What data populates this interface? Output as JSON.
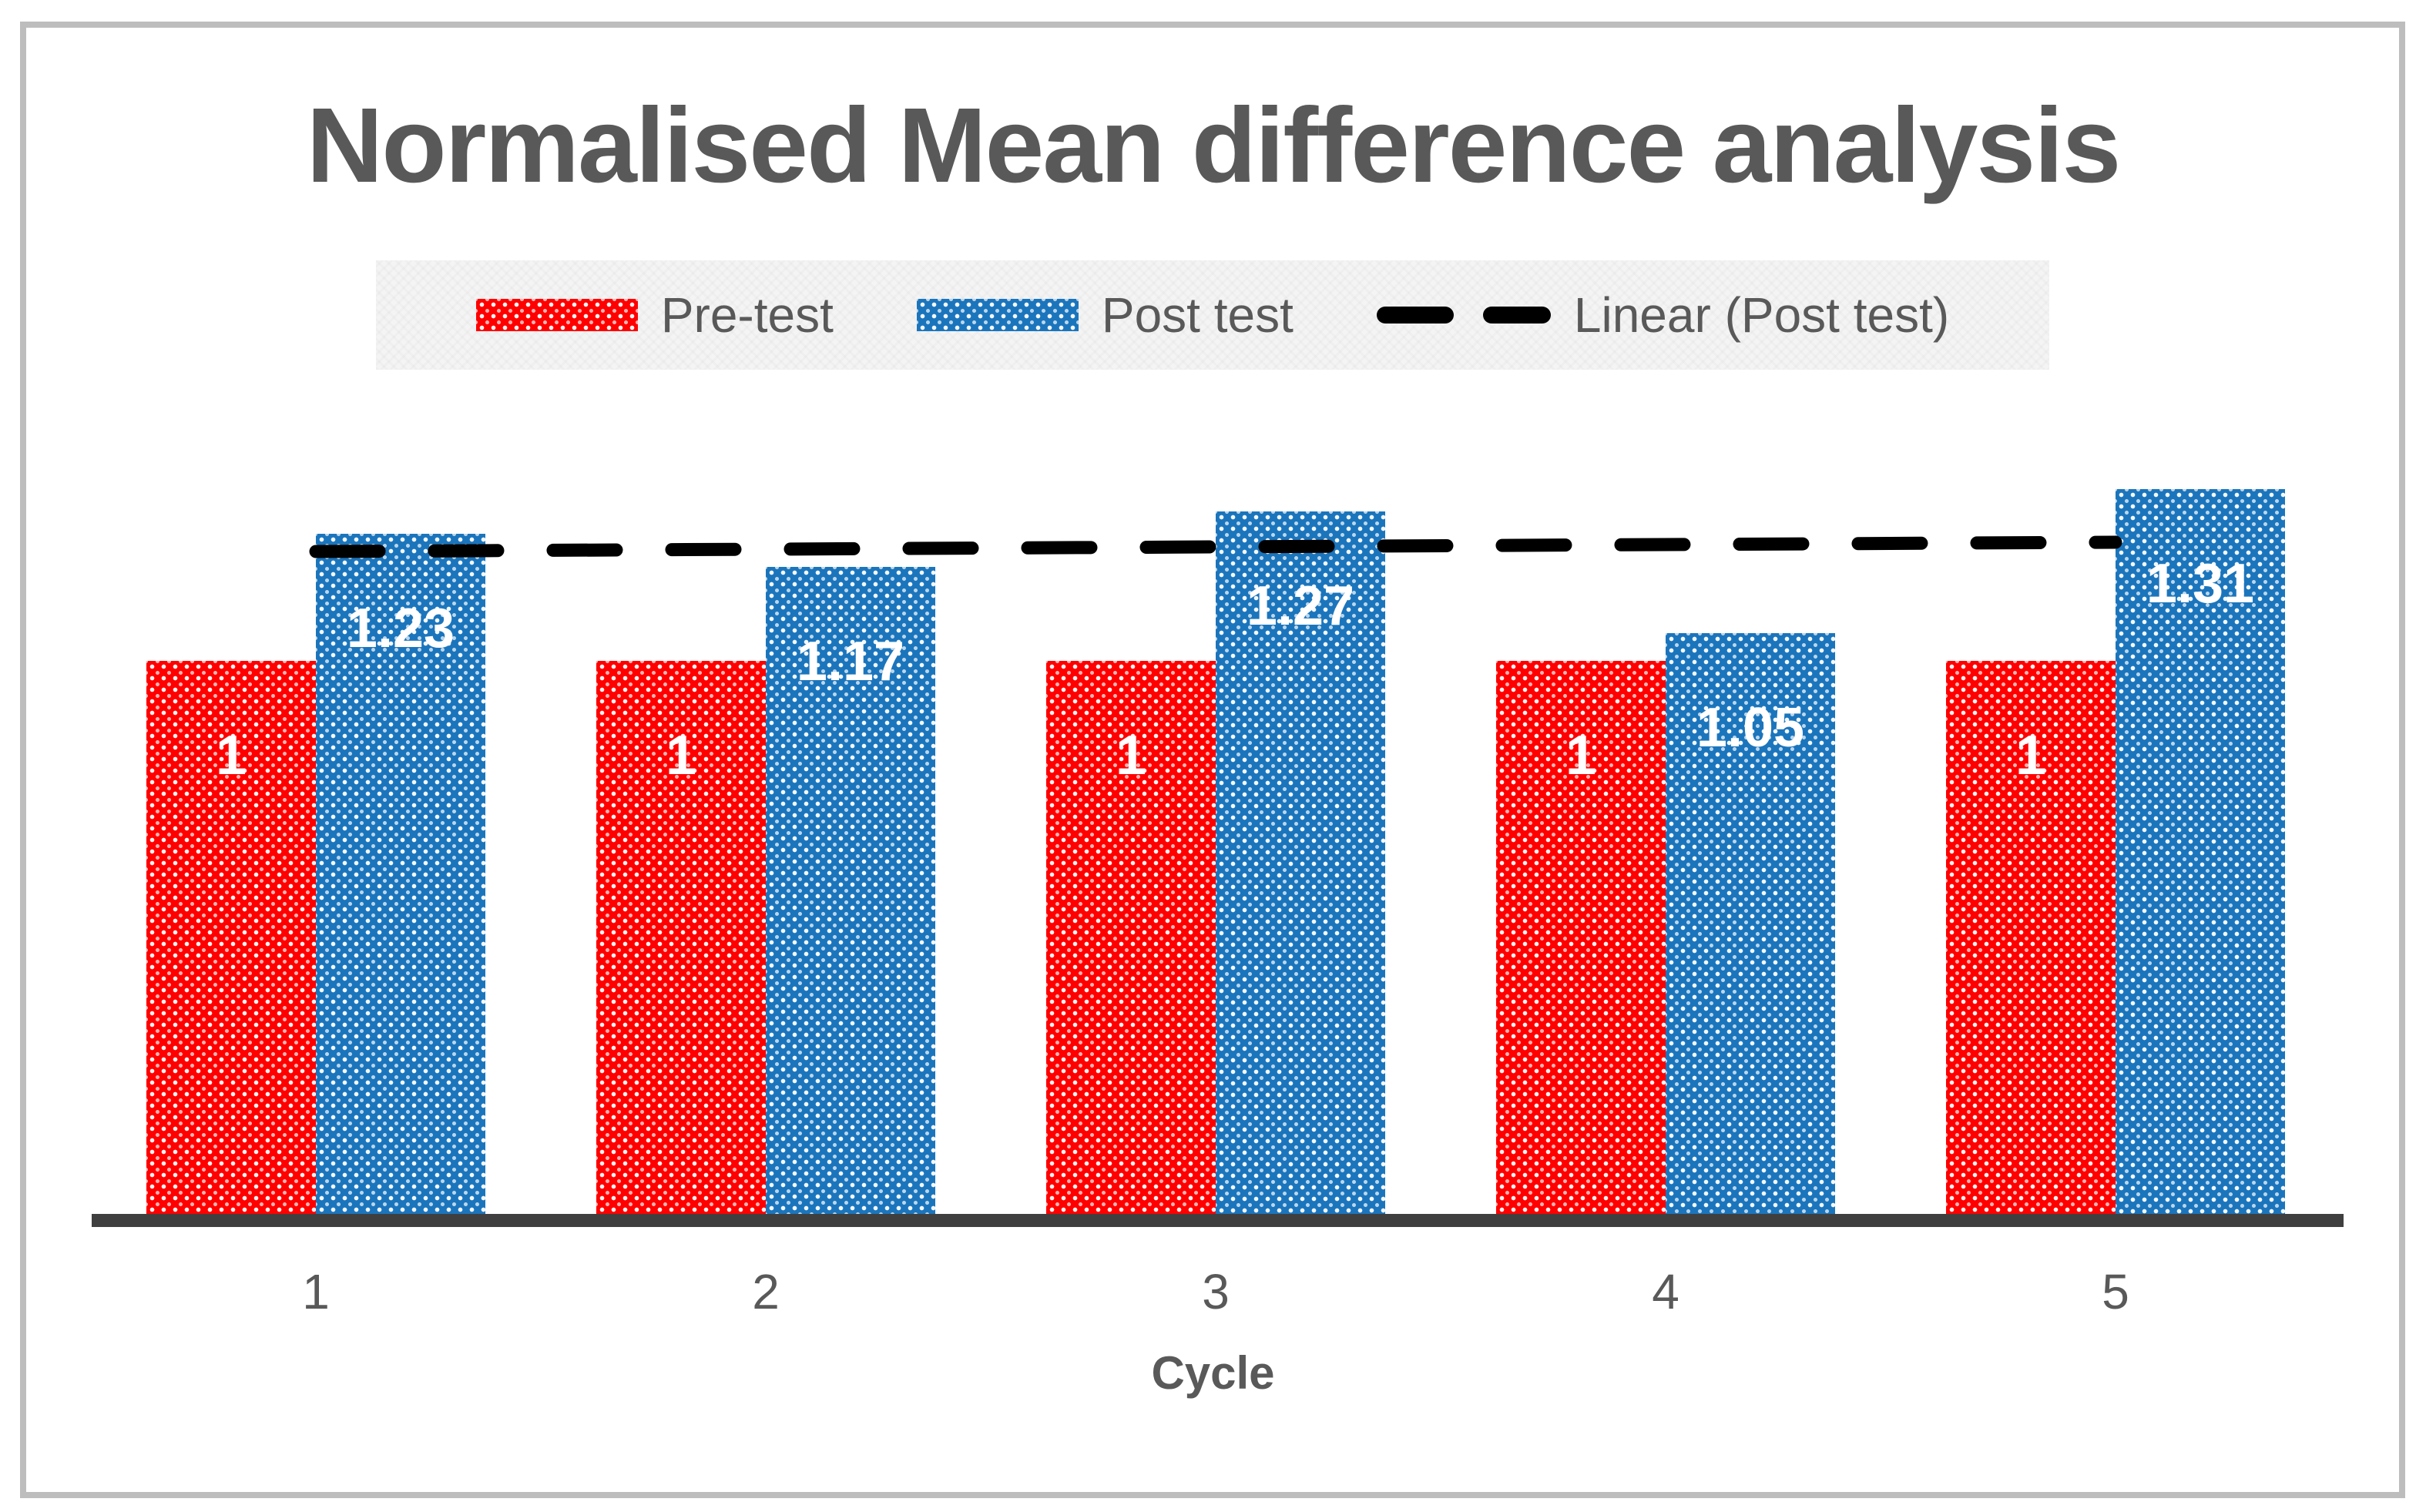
{
  "title": "Normalised Mean difference analysis",
  "colors": {
    "pre_test_bar": "#FE0000",
    "post_test_bar": "#1B75BC",
    "trendline": "#000000",
    "axis_line": "#3F3F3F",
    "text_gray": "#595959",
    "frame_border": "#BDBDBD",
    "legend_background": "#F4F4F4",
    "bar_value_labels": "#FFFFFF"
  },
  "legend": {
    "items": [
      {
        "label": "Pre-test",
        "swatch": "red-dotted"
      },
      {
        "label": "Post test",
        "swatch": "blue-dotted"
      },
      {
        "label": "Linear (Post test)",
        "swatch": "black-dashed-line"
      }
    ]
  },
  "xaxis": {
    "label": "Cycle",
    "ticks": [
      "1",
      "2",
      "3",
      "4",
      "5"
    ]
  },
  "chart_data": {
    "type": "bar",
    "title": "Normalised Mean difference analysis",
    "xlabel": "Cycle",
    "ylabel": "",
    "ylim": [
      0,
      1.4
    ],
    "grid": false,
    "y_axis_visible": false,
    "legend_position": "top",
    "categories": [
      "1",
      "2",
      "3",
      "4",
      "5"
    ],
    "series": [
      {
        "name": "Pre-test",
        "color": "#FE0000",
        "values": [
          1,
          1,
          1,
          1,
          1
        ],
        "labels": [
          "1",
          "1",
          "1",
          "1",
          "1"
        ]
      },
      {
        "name": "Post test",
        "color": "#1B75BC",
        "values": [
          1.23,
          1.17,
          1.27,
          1.05,
          1.31
        ],
        "labels": [
          "1.23",
          "1.17",
          "1.27",
          "1.05",
          "1.31"
        ]
      }
    ],
    "trendline": {
      "name": "Linear (Post test)",
      "style": "dashed",
      "color": "#000000",
      "y_start": 1.198,
      "y_end": 1.214
    }
  }
}
